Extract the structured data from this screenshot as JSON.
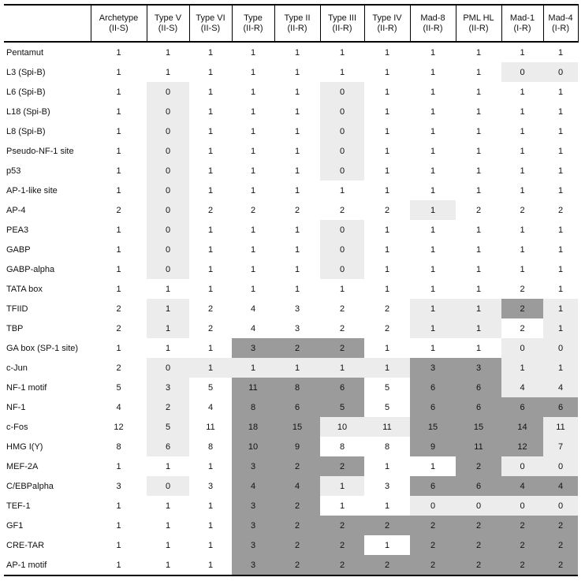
{
  "table": {
    "corner_label": "",
    "columns": [
      {
        "label": "Archetype",
        "group": "(II-S)"
      },
      {
        "label": "Type V",
        "group": "(II-S)"
      },
      {
        "label": "Type VI",
        "group": "(II-S)"
      },
      {
        "label": "Type",
        "group": "(II-R)"
      },
      {
        "label": "Type II",
        "group": "(II-R)"
      },
      {
        "label": "Type III",
        "group": "(II-R)"
      },
      {
        "label": "Type IV",
        "group": "(II-R)"
      },
      {
        "label": "Mad-8",
        "group": "(II-R)"
      },
      {
        "label": "PML HL",
        "group": "(II-R)"
      },
      {
        "label": "Mad-1",
        "group": "(I-R)"
      },
      {
        "label": "Mad-4",
        "group": "(I-R)"
      }
    ],
    "shading_colors": {
      "w": "#ffffff",
      "l": "#ececec",
      "d": "#9b9b9b"
    },
    "rows": [
      {
        "label": "Pentamut",
        "values": [
          1,
          1,
          1,
          1,
          1,
          1,
          1,
          1,
          1,
          1,
          1
        ],
        "shading": [
          "w",
          "w",
          "w",
          "w",
          "w",
          "w",
          "w",
          "w",
          "w",
          "w",
          "w"
        ]
      },
      {
        "label": "L3 (Spi-B)",
        "values": [
          1,
          1,
          1,
          1,
          1,
          1,
          1,
          1,
          1,
          0,
          0
        ],
        "shading": [
          "w",
          "w",
          "w",
          "w",
          "w",
          "w",
          "w",
          "w",
          "w",
          "l",
          "l"
        ]
      },
      {
        "label": "L6 (Spi-B)",
        "values": [
          1,
          0,
          1,
          1,
          1,
          0,
          1,
          1,
          1,
          1,
          1
        ],
        "shading": [
          "w",
          "l",
          "w",
          "w",
          "w",
          "l",
          "w",
          "w",
          "w",
          "w",
          "w"
        ]
      },
      {
        "label": "L18 (Spi-B)",
        "values": [
          1,
          0,
          1,
          1,
          1,
          0,
          1,
          1,
          1,
          1,
          1
        ],
        "shading": [
          "w",
          "l",
          "w",
          "w",
          "w",
          "l",
          "w",
          "w",
          "w",
          "w",
          "w"
        ]
      },
      {
        "label": "L8 (Spi-B)",
        "values": [
          1,
          0,
          1,
          1,
          1,
          0,
          1,
          1,
          1,
          1,
          1
        ],
        "shading": [
          "w",
          "l",
          "w",
          "w",
          "w",
          "l",
          "w",
          "w",
          "w",
          "w",
          "w"
        ]
      },
      {
        "label": "Pseudo-NF-1 site",
        "values": [
          1,
          0,
          1,
          1,
          1,
          0,
          1,
          1,
          1,
          1,
          1
        ],
        "shading": [
          "w",
          "l",
          "w",
          "w",
          "w",
          "l",
          "w",
          "w",
          "w",
          "w",
          "w"
        ]
      },
      {
        "label": "p53",
        "values": [
          1,
          0,
          1,
          1,
          1,
          0,
          1,
          1,
          1,
          1,
          1
        ],
        "shading": [
          "w",
          "l",
          "w",
          "w",
          "w",
          "l",
          "w",
          "w",
          "w",
          "w",
          "w"
        ]
      },
      {
        "label": "AP-1-like site",
        "values": [
          1,
          0,
          1,
          1,
          1,
          1,
          1,
          1,
          1,
          1,
          1
        ],
        "shading": [
          "w",
          "l",
          "w",
          "w",
          "w",
          "w",
          "w",
          "w",
          "w",
          "w",
          "w"
        ]
      },
      {
        "label": "AP-4",
        "values": [
          2,
          0,
          2,
          2,
          2,
          2,
          2,
          1,
          2,
          2,
          2
        ],
        "shading": [
          "w",
          "l",
          "w",
          "w",
          "w",
          "w",
          "w",
          "l",
          "w",
          "w",
          "w"
        ]
      },
      {
        "label": "PEA3",
        "values": [
          1,
          0,
          1,
          1,
          1,
          0,
          1,
          1,
          1,
          1,
          1
        ],
        "shading": [
          "w",
          "l",
          "w",
          "w",
          "w",
          "l",
          "w",
          "w",
          "w",
          "w",
          "w"
        ]
      },
      {
        "label": "GABP",
        "values": [
          1,
          0,
          1,
          1,
          1,
          0,
          1,
          1,
          1,
          1,
          1
        ],
        "shading": [
          "w",
          "l",
          "w",
          "w",
          "w",
          "l",
          "w",
          "w",
          "w",
          "w",
          "w"
        ]
      },
      {
        "label": "GABP-alpha",
        "values": [
          1,
          0,
          1,
          1,
          1,
          0,
          1,
          1,
          1,
          1,
          1
        ],
        "shading": [
          "w",
          "l",
          "w",
          "w",
          "w",
          "l",
          "w",
          "w",
          "w",
          "w",
          "w"
        ]
      },
      {
        "label": "TATA box",
        "values": [
          1,
          1,
          1,
          1,
          1,
          1,
          1,
          1,
          1,
          2,
          1
        ],
        "shading": [
          "w",
          "w",
          "w",
          "w",
          "w",
          "w",
          "w",
          "w",
          "w",
          "w",
          "w"
        ]
      },
      {
        "label": "TFIID",
        "values": [
          2,
          1,
          2,
          4,
          3,
          2,
          2,
          1,
          1,
          2,
          1
        ],
        "shading": [
          "w",
          "l",
          "w",
          "w",
          "w",
          "w",
          "w",
          "l",
          "l",
          "d",
          "l"
        ]
      },
      {
        "label": "TBP",
        "values": [
          2,
          1,
          2,
          4,
          3,
          2,
          2,
          1,
          1,
          2,
          1
        ],
        "shading": [
          "w",
          "l",
          "w",
          "w",
          "w",
          "w",
          "w",
          "l",
          "l",
          "w",
          "l"
        ]
      },
      {
        "label": "GA box (SP-1 site)",
        "values": [
          1,
          1,
          1,
          3,
          2,
          2,
          1,
          1,
          1,
          0,
          0
        ],
        "shading": [
          "w",
          "w",
          "w",
          "d",
          "d",
          "d",
          "w",
          "w",
          "w",
          "l",
          "l"
        ]
      },
      {
        "label": "c-Jun",
        "values": [
          2,
          0,
          1,
          1,
          1,
          1,
          1,
          3,
          3,
          1,
          1
        ],
        "shading": [
          "w",
          "l",
          "l",
          "l",
          "l",
          "l",
          "l",
          "d",
          "d",
          "l",
          "l"
        ]
      },
      {
        "label": "NF-1 motif",
        "values": [
          5,
          3,
          5,
          11,
          8,
          6,
          5,
          6,
          6,
          4,
          4
        ],
        "shading": [
          "w",
          "l",
          "w",
          "d",
          "d",
          "d",
          "w",
          "d",
          "d",
          "l",
          "l"
        ]
      },
      {
        "label": "NF-1",
        "values": [
          4,
          2,
          4,
          8,
          6,
          5,
          5,
          6,
          6,
          6,
          6
        ],
        "shading": [
          "w",
          "l",
          "w",
          "d",
          "d",
          "d",
          "w",
          "d",
          "d",
          "d",
          "d"
        ]
      },
      {
        "label": "c-Fos",
        "values": [
          12,
          5,
          11,
          18,
          15,
          10,
          11,
          15,
          15,
          14,
          11
        ],
        "shading": [
          "w",
          "l",
          "w",
          "d",
          "d",
          "l",
          "l",
          "d",
          "d",
          "d",
          "l"
        ]
      },
      {
        "label": "HMG I(Y)",
        "values": [
          8,
          6,
          8,
          10,
          9,
          8,
          8,
          9,
          11,
          12,
          7
        ],
        "shading": [
          "w",
          "l",
          "w",
          "d",
          "d",
          "w",
          "w",
          "d",
          "d",
          "d",
          "l"
        ]
      },
      {
        "label": "MEF-2A",
        "values": [
          1,
          1,
          1,
          3,
          2,
          2,
          1,
          1,
          2,
          0,
          0
        ],
        "shading": [
          "w",
          "w",
          "w",
          "d",
          "d",
          "d",
          "w",
          "w",
          "d",
          "l",
          "l"
        ]
      },
      {
        "label": "C/EBPalpha",
        "values": [
          3,
          0,
          3,
          4,
          4,
          1,
          3,
          6,
          6,
          4,
          4
        ],
        "shading": [
          "w",
          "l",
          "w",
          "d",
          "d",
          "l",
          "w",
          "d",
          "d",
          "d",
          "d"
        ]
      },
      {
        "label": "TEF-1",
        "values": [
          1,
          1,
          1,
          3,
          2,
          1,
          1,
          0,
          0,
          0,
          0
        ],
        "shading": [
          "w",
          "w",
          "w",
          "d",
          "d",
          "w",
          "w",
          "l",
          "l",
          "l",
          "l"
        ]
      },
      {
        "label": "GF1",
        "values": [
          1,
          1,
          1,
          3,
          2,
          2,
          2,
          2,
          2,
          2,
          2
        ],
        "shading": [
          "w",
          "w",
          "w",
          "d",
          "d",
          "d",
          "d",
          "d",
          "d",
          "d",
          "d"
        ]
      },
      {
        "label": "CRE-TAR",
        "values": [
          1,
          1,
          1,
          3,
          2,
          2,
          1,
          2,
          2,
          2,
          2
        ],
        "shading": [
          "w",
          "w",
          "w",
          "d",
          "d",
          "d",
          "w",
          "d",
          "d",
          "d",
          "d"
        ]
      },
      {
        "label": "AP-1 motif",
        "values": [
          1,
          1,
          1,
          3,
          2,
          2,
          2,
          2,
          2,
          2,
          2
        ],
        "shading": [
          "w",
          "w",
          "w",
          "d",
          "d",
          "d",
          "d",
          "d",
          "d",
          "d",
          "d"
        ]
      }
    ]
  }
}
